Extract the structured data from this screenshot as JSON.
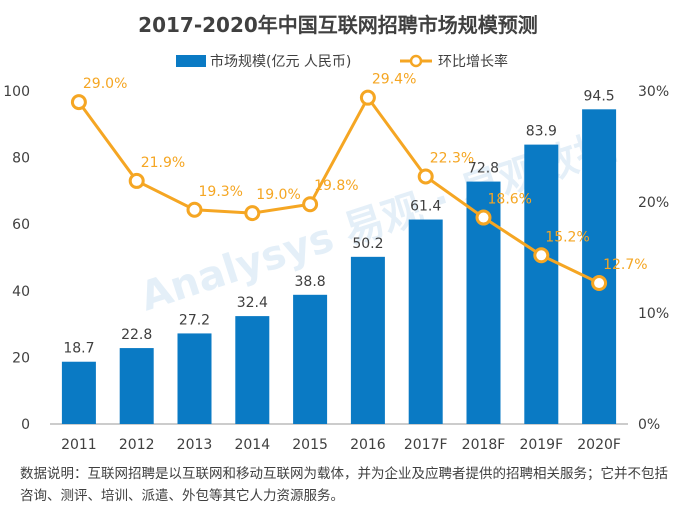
{
  "chart_data": {
    "type": "bar",
    "title": "2017-2020年中国互联网招聘市场规模预测",
    "categories": [
      "2011",
      "2012",
      "2013",
      "2014",
      "2015",
      "2016",
      "2017F",
      "2018F",
      "2019F",
      "2020F"
    ],
    "series": [
      {
        "name": "市场规模(亿元 人民币)",
        "type": "bar",
        "axis": "left",
        "color": "#0a7ac4",
        "values": [
          18.7,
          22.8,
          27.2,
          32.4,
          38.8,
          50.2,
          61.4,
          72.8,
          83.9,
          94.5
        ]
      },
      {
        "name": "环比增长率",
        "type": "line",
        "axis": "right",
        "color": "#f5a623",
        "values": [
          29.0,
          21.9,
          19.3,
          19.0,
          19.8,
          29.4,
          22.3,
          18.6,
          15.2,
          12.7
        ],
        "labels": [
          "29.0%",
          "21.9%",
          "19.3%",
          "19.0%",
          "19.8%",
          "29.4%",
          "22.3%",
          "18.6%",
          "15.2%",
          "12.7%"
        ]
      }
    ],
    "bar_labels": [
      "18.7",
      "22.8",
      "27.2",
      "32.4",
      "38.8",
      "50.2",
      "61.4",
      "72.8",
      "83.9",
      "94.5"
    ],
    "ylim_left": [
      0,
      100
    ],
    "yticks_left": [
      "0",
      "20",
      "40",
      "60",
      "80",
      "100"
    ],
    "ylim_right": [
      0,
      30
    ],
    "yticks_right": [
      "0%",
      "10%",
      "20%",
      "30%"
    ],
    "legend_position": "top-center",
    "grid": false
  },
  "watermark": "Analysys 易观 · 易观数据",
  "note": {
    "text": "数据说明：互联网招聘是以互联网和移动互联网为载体，并为企业及应聘者提供的招聘相关服务；它并不包括咨询、测评、培训、派遣、外包等其它人力资源服务。"
  }
}
